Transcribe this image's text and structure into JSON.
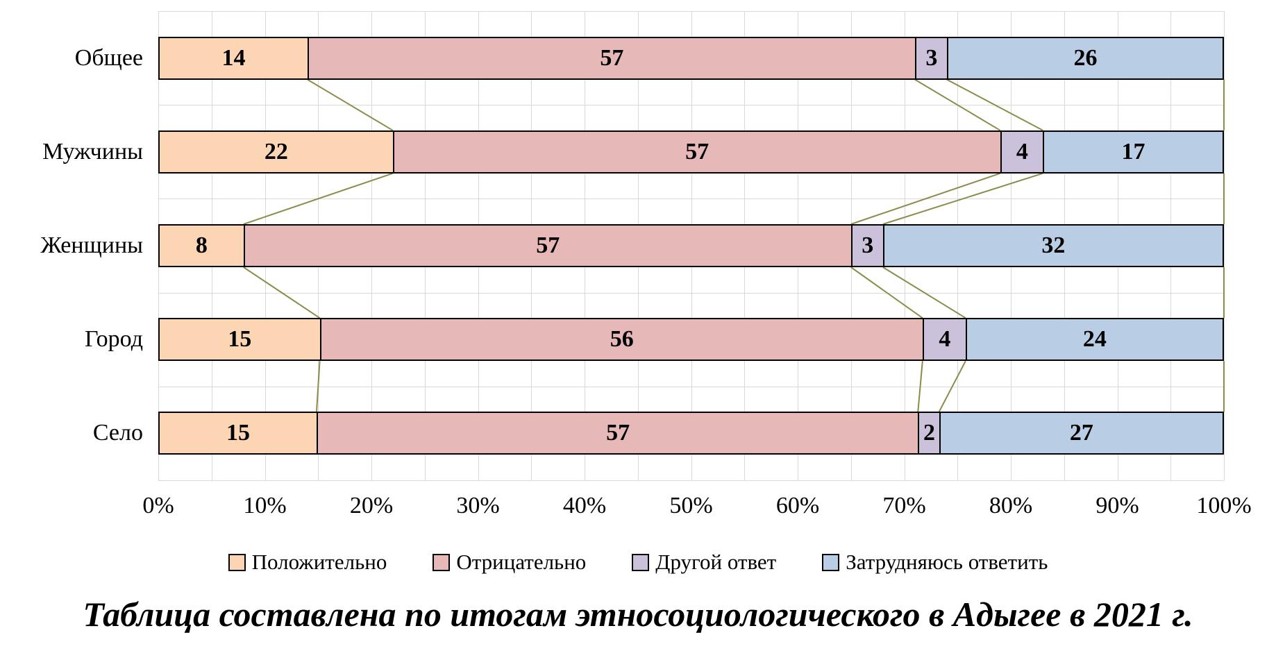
{
  "caption": "Таблица составлена по итогам этносоциологического в Адыгее в 2021 г.",
  "chart_data": {
    "type": "bar",
    "orientation": "horizontal",
    "stacked": "percent",
    "title": "",
    "xlabel": "",
    "ylabel": "",
    "categories": [
      "Общее",
      "Мужчины",
      "Женщины",
      "Город",
      "Село"
    ],
    "series": [
      {
        "name": "Положительно",
        "color": "#FCD5B4",
        "values": [
          14,
          22,
          8,
          15,
          15
        ]
      },
      {
        "name": "Отрицательно",
        "color": "#E6B9B8",
        "values": [
          57,
          57,
          57,
          56,
          57
        ]
      },
      {
        "name": "Другой ответ",
        "color": "#CCC1DA",
        "values": [
          3,
          4,
          3,
          4,
          2
        ]
      },
      {
        "name": "Затрудняюсь ответить",
        "color": "#B9CDE5",
        "values": [
          26,
          17,
          32,
          24,
          27
        ]
      }
    ],
    "x_ticks": [
      "0%",
      "10%",
      "20%",
      "30%",
      "40%",
      "50%",
      "60%",
      "70%",
      "80%",
      "90%",
      "100%"
    ],
    "xlim": [
      0,
      100
    ],
    "grid": true,
    "legend_position": "bottom",
    "colors": {
      "bar_border": "#000000",
      "connector_line": "#8C8C4A",
      "gridline": "#D9D9D9",
      "label_text": "#000000"
    }
  }
}
